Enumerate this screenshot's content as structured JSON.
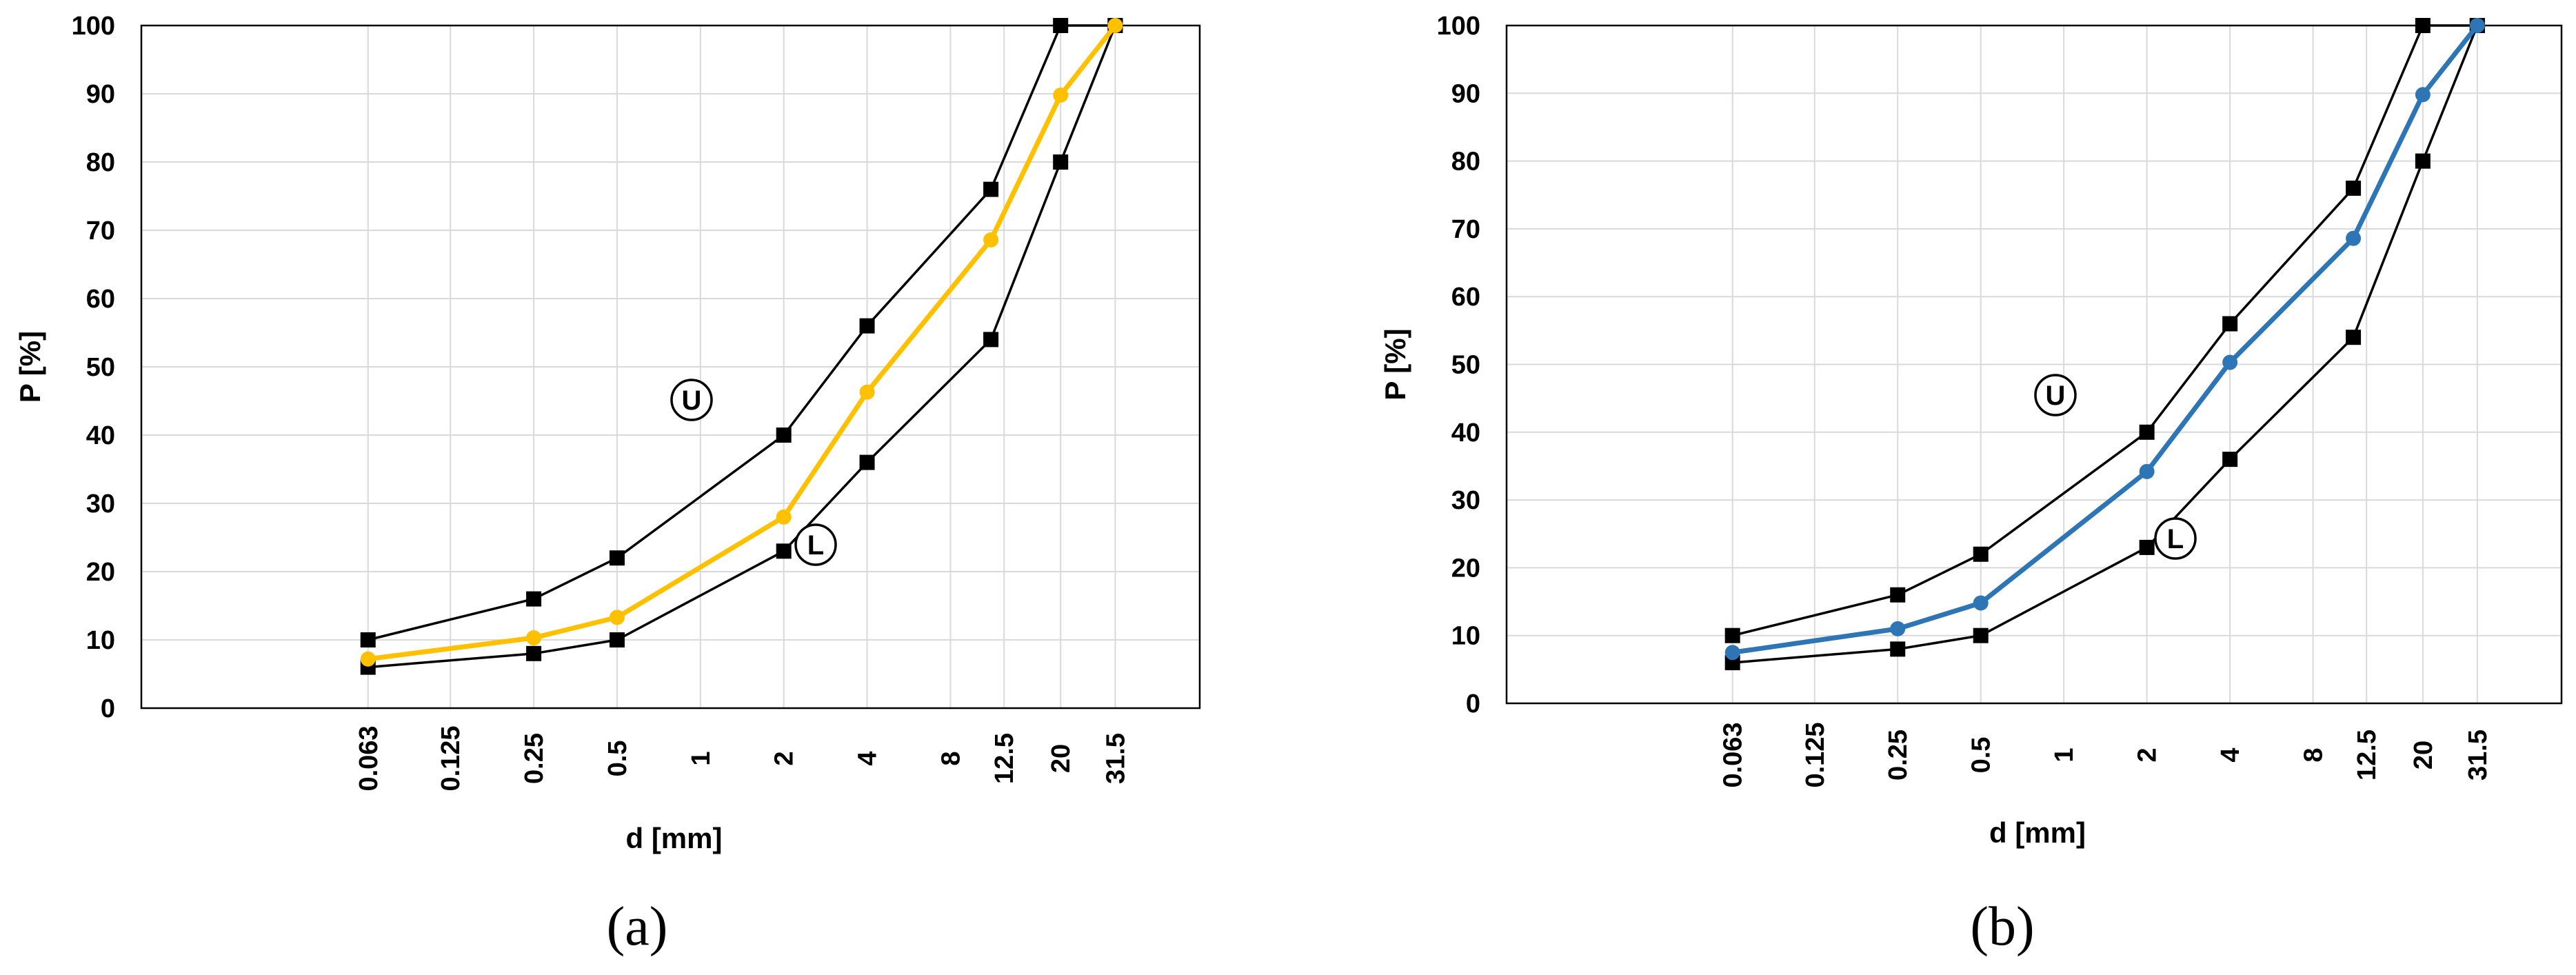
{
  "chart_data": [
    {
      "type": "line",
      "panel_label": "(a)",
      "xlabel": "d [mm]",
      "ylabel": "P [%]",
      "x_scale": "log",
      "ylim": [
        0,
        100
      ],
      "y_ticks": [
        "0",
        "10",
        "20",
        "30",
        "40",
        "50",
        "60",
        "70",
        "80",
        "90",
        "100"
      ],
      "x_ticks": [
        "0.063",
        "0.125",
        "0.25",
        "0.5",
        "1",
        "2",
        "4",
        "8",
        "12.5",
        "20",
        "31.5"
      ],
      "grid": true,
      "curve_labels": [
        "U",
        "L"
      ],
      "series": [
        {
          "role": "upper",
          "color": "#000000",
          "marker": "square",
          "x": [
            0.063,
            0.25,
            0.5,
            2,
            4,
            11.2,
            20,
            31.5
          ],
          "y": [
            10,
            16,
            22,
            40,
            56,
            76,
            100,
            100
          ]
        },
        {
          "role": "lower",
          "color": "#000000",
          "marker": "square",
          "x": [
            0.063,
            0.25,
            0.5,
            2,
            4,
            11.2,
            20,
            31.5
          ],
          "y": [
            6,
            8,
            10,
            23,
            36,
            54,
            80,
            100
          ]
        },
        {
          "role": "mix",
          "color": "#FFC000",
          "marker": "circle",
          "x": [
            0.063,
            0.25,
            0.5,
            2,
            4,
            11.2,
            20,
            31.5
          ],
          "y": [
            7.2,
            10.3,
            13.3,
            28,
            46.3,
            68.6,
            89.8,
            100
          ]
        }
      ]
    },
    {
      "type": "line",
      "panel_label": "(b)",
      "xlabel": "d [mm]",
      "ylabel": "P [%]",
      "x_scale": "log",
      "ylim": [
        0,
        100
      ],
      "y_ticks": [
        "0",
        "10",
        "20",
        "30",
        "40",
        "50",
        "60",
        "70",
        "80",
        "90",
        "100"
      ],
      "x_ticks": [
        "0.063",
        "0.125",
        "0.25",
        "0.5",
        "1",
        "2",
        "4",
        "8",
        "12.5",
        "20",
        "31.5"
      ],
      "grid": true,
      "curve_labels": [
        "U",
        "L"
      ],
      "series": [
        {
          "role": "upper",
          "color": "#000000",
          "marker": "square",
          "x": [
            0.063,
            0.25,
            0.5,
            2,
            4,
            11.2,
            20,
            31.5
          ],
          "y": [
            10,
            16,
            22,
            40,
            56,
            76,
            100,
            100
          ]
        },
        {
          "role": "lower",
          "color": "#000000",
          "marker": "square",
          "x": [
            0.063,
            0.25,
            0.5,
            2,
            4,
            11.2,
            20,
            31.5
          ],
          "y": [
            6,
            8,
            10,
            23,
            36,
            54,
            80,
            100
          ]
        },
        {
          "role": "mix",
          "color": "#2E75B6",
          "marker": "circle",
          "x": [
            0.063,
            0.25,
            0.5,
            2,
            4,
            11.2,
            20,
            31.5
          ],
          "y": [
            7.5,
            11,
            14.8,
            34.2,
            50.3,
            68.6,
            89.8,
            100
          ]
        }
      ]
    }
  ]
}
